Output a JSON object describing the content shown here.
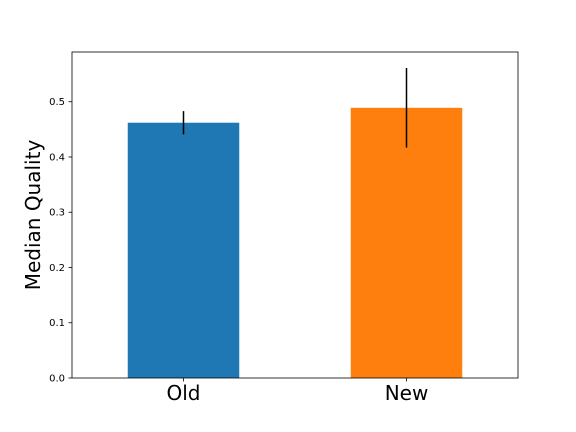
{
  "chart_data": {
    "type": "bar",
    "title": "",
    "xlabel": "",
    "ylabel": "Median Quality",
    "categories": [
      "Old",
      "New"
    ],
    "values": [
      0.462,
      0.489
    ],
    "errors": [
      {
        "low": 0.441,
        "high": 0.483
      },
      {
        "low": 0.417,
        "high": 0.561
      }
    ],
    "colors": [
      "#1f77b4",
      "#ff7f0e"
    ],
    "error_color": "#000000",
    "ylim": [
      0,
      0.59
    ],
    "yticks": [
      0.0,
      0.1,
      0.2,
      0.3,
      0.4,
      0.5
    ],
    "ytick_labels": [
      "0.0",
      "0.1",
      "0.2",
      "0.3",
      "0.4",
      "0.5"
    ],
    "grid": false,
    "legend": "none"
  }
}
